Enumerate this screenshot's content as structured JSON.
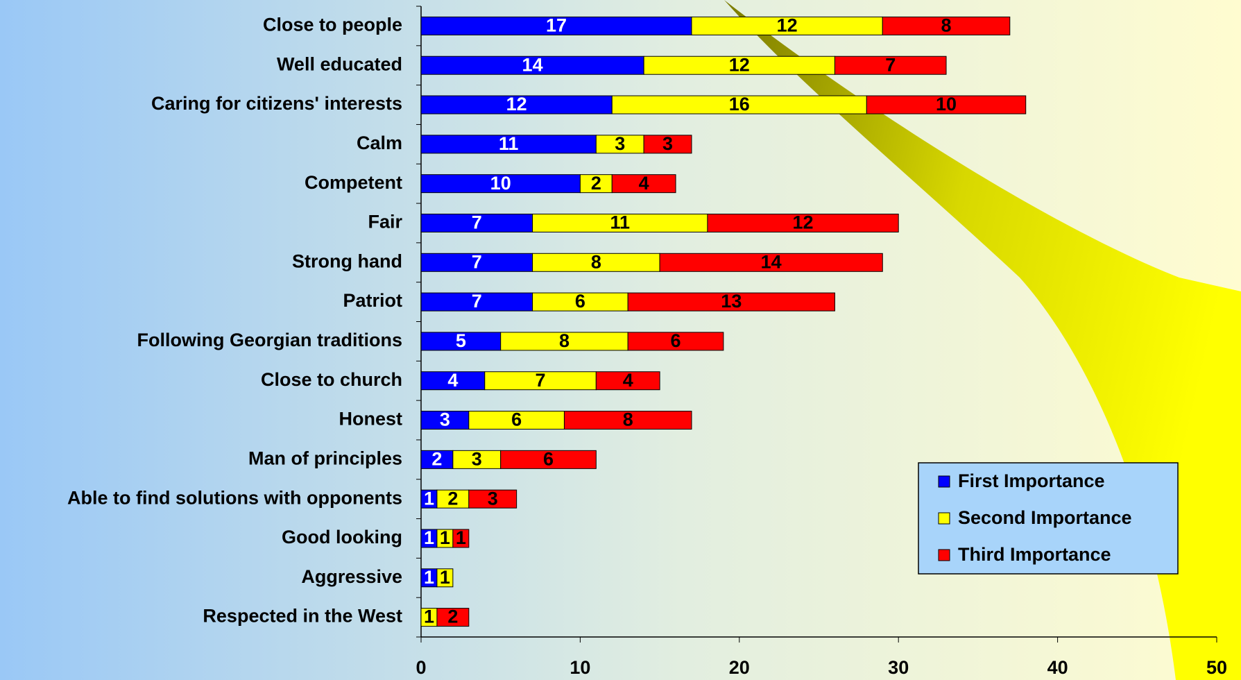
{
  "chart_data": {
    "type": "bar",
    "orientation": "horizontal",
    "stacked": true,
    "categories": [
      "Close to people",
      "Well educated",
      "Caring for citizens' interests",
      "Calm",
      "Competent",
      "Fair",
      "Strong hand",
      "Patriot",
      "Following Georgian traditions",
      "Close to church",
      "Honest",
      "Man of principles",
      "Able to find solutions with opponents",
      "Good looking",
      "Aggressive",
      "Respected in the West"
    ],
    "series": [
      {
        "name": "First Importance",
        "color": "#0000ff",
        "values": [
          17,
          14,
          12,
          11,
          10,
          7,
          7,
          7,
          5,
          4,
          3,
          2,
          1,
          1,
          1,
          null
        ]
      },
      {
        "name": "Second Importance",
        "color": "#ffff00",
        "values": [
          12,
          12,
          16,
          3,
          2,
          11,
          8,
          6,
          8,
          7,
          6,
          3,
          2,
          1,
          1,
          1
        ]
      },
      {
        "name": "Third Importance",
        "color": "#ff0000",
        "values": [
          8,
          7,
          10,
          3,
          4,
          12,
          14,
          13,
          6,
          4,
          8,
          6,
          3,
          1,
          null,
          2
        ]
      }
    ],
    "xlim": [
      0,
      50
    ],
    "xticks": [
      0,
      10,
      20,
      30,
      40,
      50
    ],
    "legend": "lower right"
  }
}
